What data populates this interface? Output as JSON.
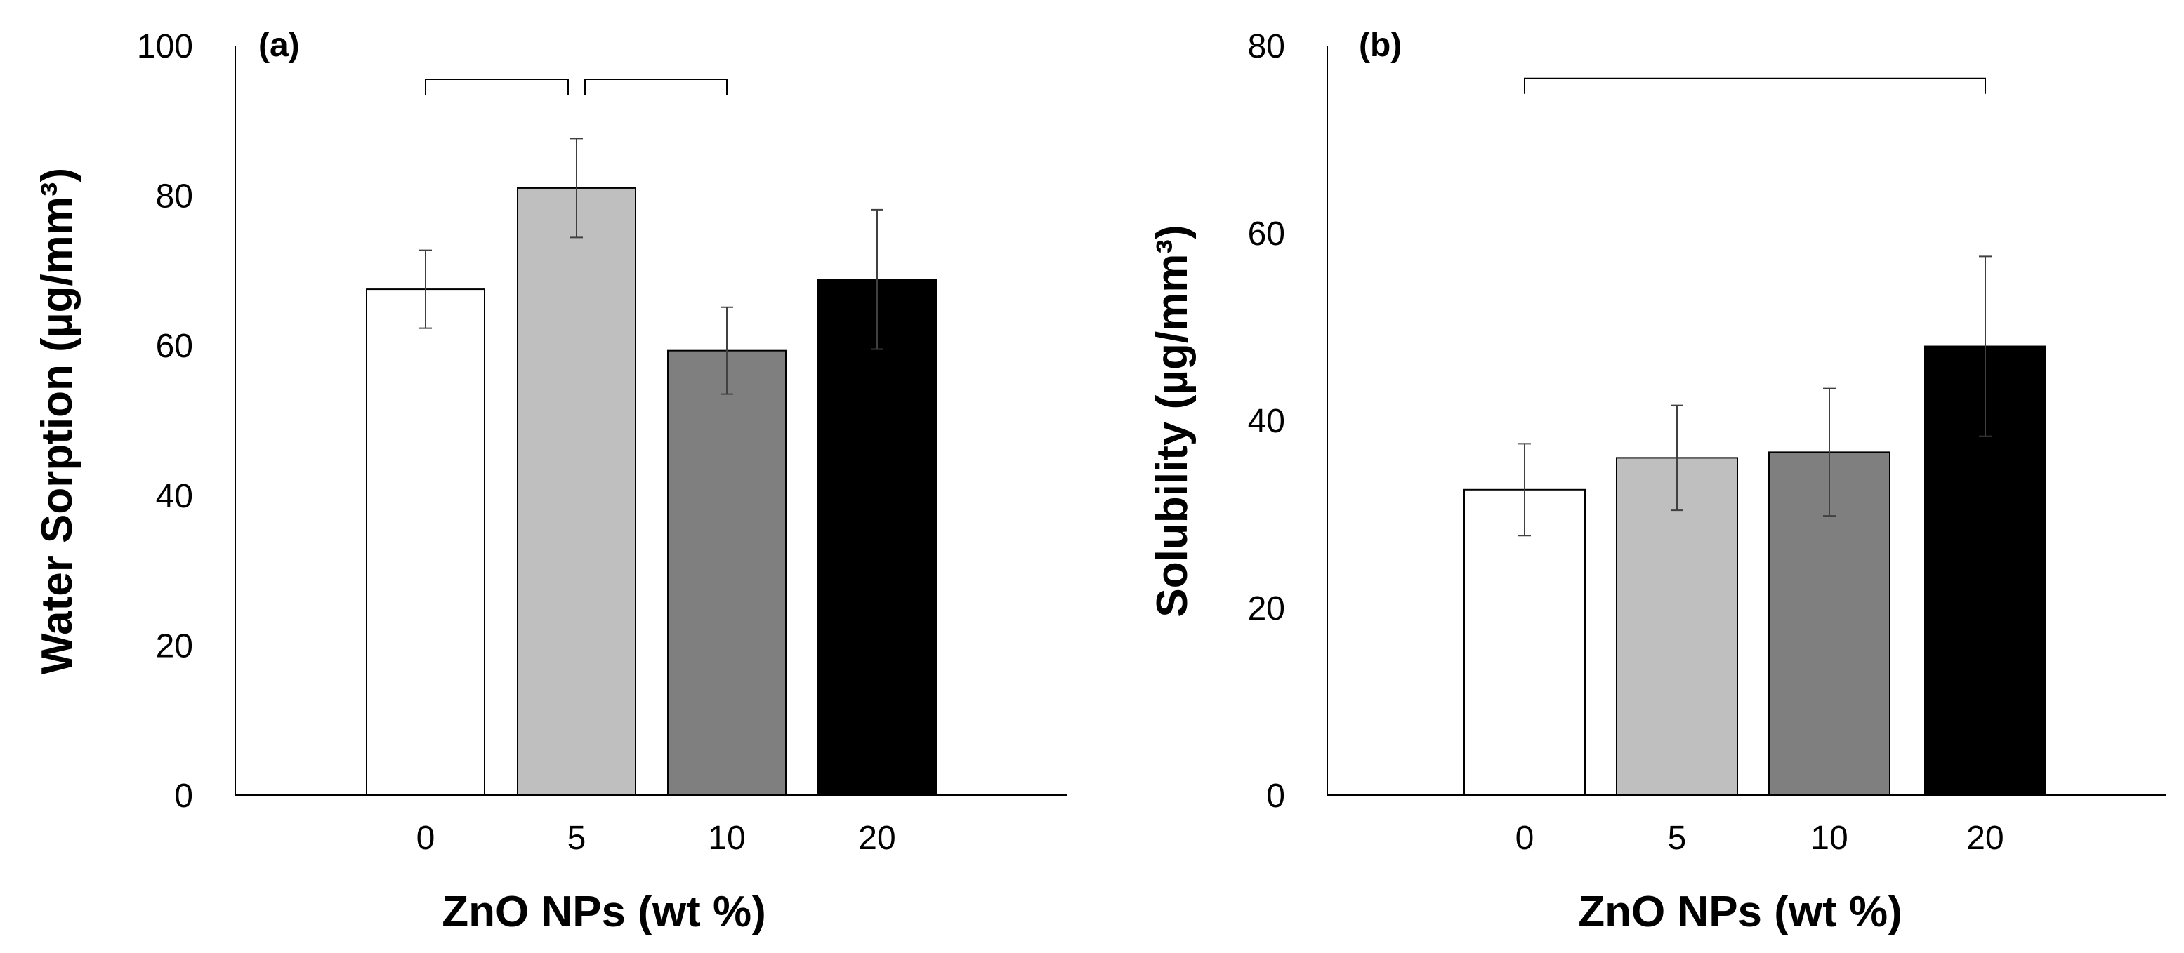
{
  "chart_data": [
    {
      "type": "bar",
      "panel_label": "(a)",
      "ylabel": "Water Sorption (µg/mm³)",
      "xlabel": "ZnO NPs (wt %)",
      "categories": [
        "0",
        "5",
        "10",
        "20"
      ],
      "values": [
        67.5,
        81.0,
        59.3,
        68.8
      ],
      "errors": [
        5.2,
        6.6,
        5.8,
        9.3
      ],
      "colors": [
        "#ffffff",
        "#bfbfbf",
        "#7f7f7f",
        "#000000"
      ],
      "ylim": [
        0,
        100
      ],
      "yticks": [
        "0",
        "20",
        "40",
        "60",
        "80",
        "100"
      ],
      "significance": [
        {
          "from": 0,
          "to": 1,
          "y": 95.5
        },
        {
          "from": 1,
          "to": 2,
          "y": 95.5
        }
      ]
    },
    {
      "type": "bar",
      "panel_label": "(b)",
      "ylabel": "Solubility (µg/mm³)",
      "xlabel": "ZnO NPs (wt %)",
      "categories": [
        "0",
        "5",
        "10",
        "20"
      ],
      "values": [
        32.6,
        36.0,
        36.6,
        47.9
      ],
      "errors": [
        4.9,
        5.6,
        6.8,
        9.6
      ],
      "colors": [
        "#ffffff",
        "#bfbfbf",
        "#7f7f7f",
        "#000000"
      ],
      "ylim": [
        0,
        80
      ],
      "yticks": [
        "0",
        "20",
        "40",
        "60",
        "80"
      ],
      "significance": [
        {
          "from": 0,
          "to": 3,
          "y": 76.5
        }
      ]
    }
  ]
}
